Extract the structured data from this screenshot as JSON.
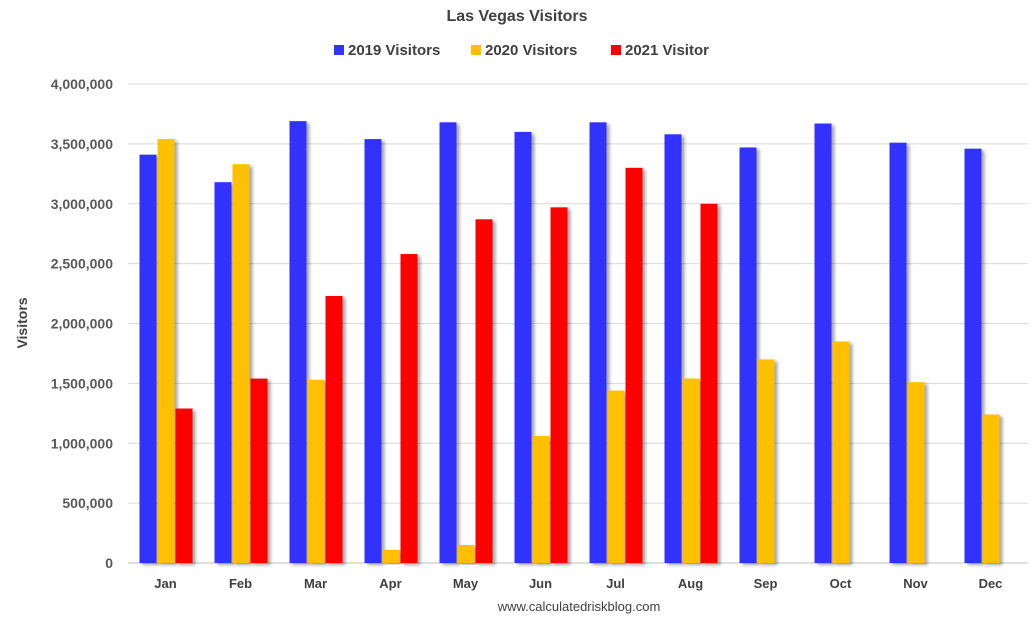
{
  "chart_data": {
    "type": "bar",
    "title": "Las Vegas Visitors",
    "ylabel": "Visitors",
    "xlabel": "",
    "footer": "www.calculatedriskblog.com",
    "ylim": [
      0,
      4000000
    ],
    "y_ticks": [
      0,
      500000,
      1000000,
      1500000,
      2000000,
      2500000,
      3000000,
      3500000,
      4000000
    ],
    "y_tick_labels": [
      "0",
      "500,000",
      "1,000,000",
      "1,500,000",
      "2,000,000",
      "2,500,000",
      "3,000,000",
      "3,500,000",
      "4,000,000"
    ],
    "grid": true,
    "legend_position": "top",
    "categories": [
      "Jan",
      "Feb",
      "Mar",
      "Apr",
      "May",
      "Jun",
      "Jul",
      "Aug",
      "Sep",
      "Oct",
      "Nov",
      "Dec"
    ],
    "series": [
      {
        "name": "2019 Visitors",
        "color": "#3333ff",
        "values": [
          3410000,
          3180000,
          3690000,
          3540000,
          3680000,
          3600000,
          3680000,
          3580000,
          3470000,
          3670000,
          3510000,
          3460000
        ]
      },
      {
        "name": "2020 Visitors",
        "color": "#ffc000",
        "values": [
          3540000,
          3330000,
          1530000,
          110000,
          150000,
          1060000,
          1440000,
          1540000,
          1700000,
          1850000,
          1510000,
          1240000
        ]
      },
      {
        "name": "2021 Visitor",
        "color": "#ff0000",
        "values": [
          1290000,
          1540000,
          2230000,
          2580000,
          2870000,
          2970000,
          3300000,
          3000000,
          null,
          null,
          null,
          null
        ]
      }
    ]
  }
}
